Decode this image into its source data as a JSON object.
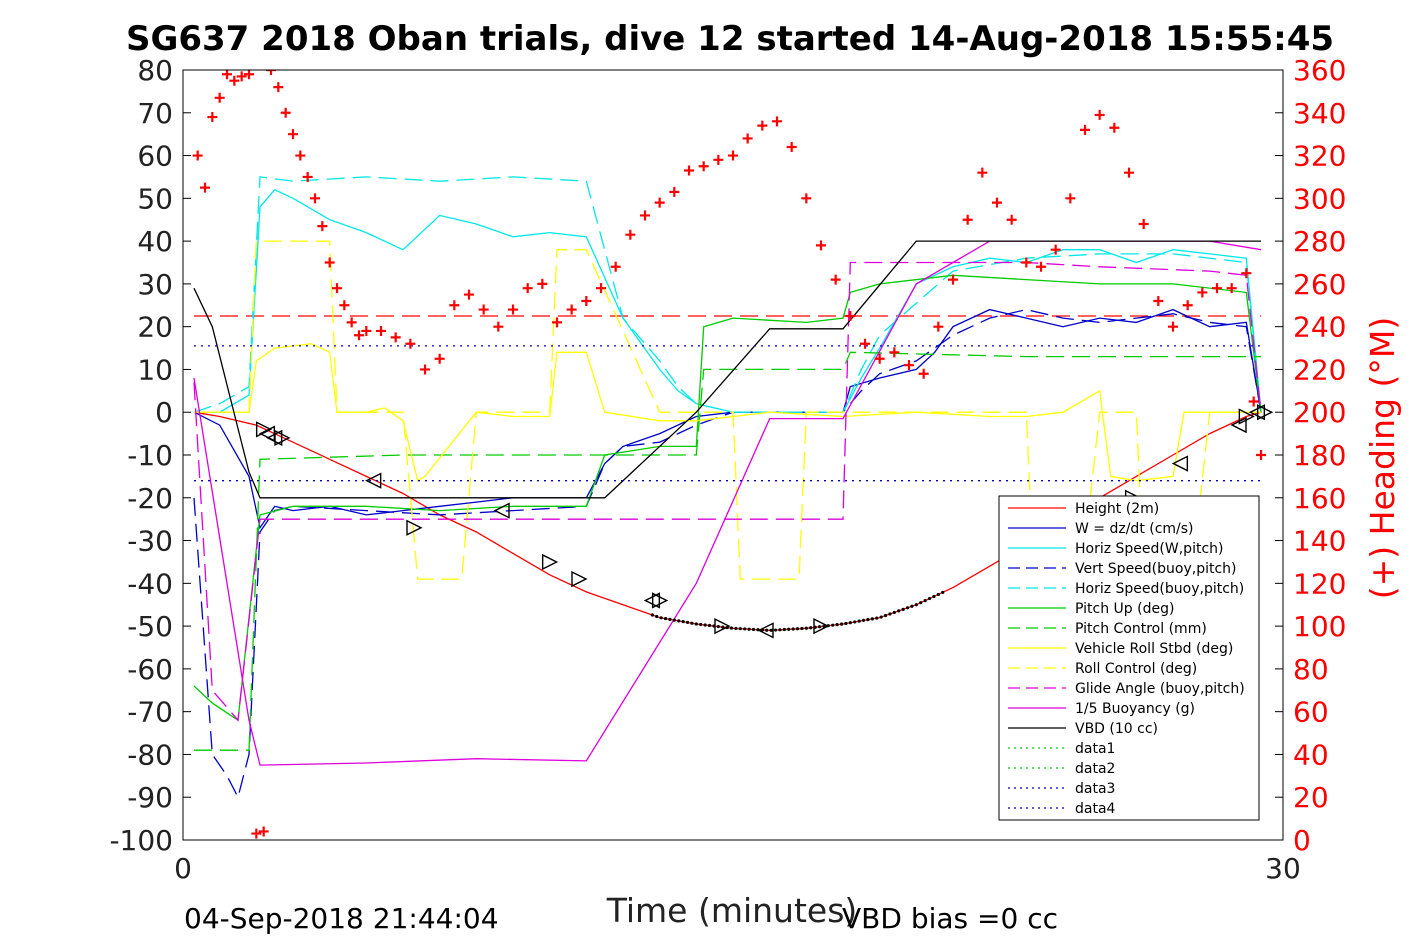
{
  "chart_data": {
    "type": "line",
    "title": "SG637 2018 Oban trials, dive 12 started 14-Aug-2018 15:55:45",
    "xlabel": "Time (minutes)",
    "ylabel_right": "(+) Heading (°M)",
    "xlim": [
      0,
      30
    ],
    "ylim_left": [
      -100,
      80
    ],
    "ylim_right": [
      0,
      360
    ],
    "x_ticks": [
      "0",
      "30"
    ],
    "y_ticks_left": [
      "80",
      "70",
      "60",
      "50",
      "40",
      "30",
      "20",
      "10",
      "0",
      "-10",
      "-20",
      "-30",
      "-40",
      "-50",
      "-60",
      "-70",
      "-80",
      "-90",
      "-100"
    ],
    "y_ticks_right": [
      "360",
      "340",
      "320",
      "300",
      "280",
      "260",
      "240",
      "220",
      "200",
      "180",
      "160",
      "140",
      "120",
      "100",
      "80",
      "60",
      "40",
      "20",
      "0"
    ],
    "grid": false,
    "legend_position": "lower-right",
    "footer_left": "04-Sep-2018 21:44:04",
    "footer_right": "VBD bias =0 cc",
    "colors": {
      "heading": "#ff0000",
      "height": "#ff0000",
      "w": "#0000c8",
      "horiz_speed": "#00e8e8",
      "pitch": "#00cc00",
      "roll": "#ffff00",
      "glide": "#dd00dd",
      "buoyancy": "#dd00dd",
      "vbd": "#000000",
      "data_green": "#00cc00",
      "data_blue": "#0000c8"
    },
    "series": [
      {
        "name": "Height (2m)",
        "axis": "left",
        "style": "solid",
        "color": "#ff0000",
        "x": [
          0.3,
          1,
          2,
          3,
          4,
          5,
          6,
          7,
          8,
          9,
          10,
          11,
          12,
          13,
          14,
          15,
          16,
          17,
          18,
          19,
          20,
          21,
          22,
          23,
          24,
          25,
          26,
          27,
          28,
          29,
          29.4
        ],
        "values": [
          0,
          -1,
          -3,
          -7,
          -11,
          -15,
          -19,
          -24,
          -28,
          -33,
          -38,
          -42,
          -45,
          -48,
          -49.5,
          -50.5,
          -51,
          -50.5,
          -49.5,
          -48,
          -45,
          -41,
          -36,
          -31,
          -26,
          -20,
          -15,
          -10,
          -5,
          -1,
          0
        ]
      },
      {
        "name": "W = dz/dt (cm/s)",
        "axis": "left",
        "style": "solid",
        "color": "#0000c8",
        "x": [
          0.3,
          1,
          1.8,
          2.1,
          2.5,
          3,
          4,
          5,
          6,
          7,
          8,
          9,
          10,
          11,
          11.5,
          12,
          13,
          14,
          15,
          16,
          17,
          18,
          18.2,
          19,
          20,
          20.5,
          21,
          22,
          23,
          24,
          25,
          26,
          27,
          28,
          29,
          29.4
        ],
        "values": [
          0,
          -3,
          -15,
          -27,
          -22,
          -23,
          -22,
          -24,
          -23,
          -22,
          -21,
          -20,
          -20,
          -20,
          -12,
          -8,
          -5,
          -1,
          0,
          0,
          0,
          0,
          6,
          8,
          10,
          14,
          20,
          24,
          22,
          20,
          22,
          21,
          24,
          20,
          21,
          0
        ]
      },
      {
        "name": "Horiz Speed(W,pitch)",
        "axis": "left",
        "style": "solid",
        "color": "#00e8e8",
        "x": [
          0.3,
          1,
          1.8,
          2.1,
          2.5,
          3,
          4,
          5,
          6,
          7,
          8,
          9,
          10,
          11,
          12,
          13,
          13.5,
          14,
          15,
          16,
          17,
          18,
          18.5,
          19,
          20,
          21,
          22,
          23,
          24,
          25,
          26,
          27,
          28,
          29,
          29.4
        ],
        "values": [
          0,
          0,
          4,
          48,
          52,
          50,
          45,
          42,
          38,
          46,
          44,
          41,
          42,
          41,
          22,
          10,
          5,
          2,
          0,
          0,
          0,
          0,
          8,
          15,
          30,
          34,
          36,
          35,
          38,
          38,
          35,
          38,
          37,
          36,
          0
        ]
      },
      {
        "name": "Vert Speed(buoy,pitch)",
        "axis": "left",
        "style": "dashed",
        "color": "#0000c8",
        "x": [
          0.3,
          0.8,
          1.2,
          1.5,
          1.8,
          2.1,
          2.5,
          3,
          5,
          7,
          9,
          11,
          11.5,
          12,
          13,
          14,
          15,
          17,
          18,
          18.5,
          19,
          20,
          21,
          22,
          23,
          24,
          25,
          26,
          27,
          28,
          29,
          29.4
        ],
        "values": [
          -20,
          -80,
          -85,
          -90,
          -80,
          -28,
          -23,
          -22,
          -23,
          -24,
          -23,
          -22,
          -12,
          -8,
          -7,
          -3,
          0,
          0,
          0,
          5,
          9,
          12,
          18,
          22,
          24,
          22,
          21,
          22,
          23,
          21,
          20,
          0
        ]
      },
      {
        "name": "Horiz Speed(buoy,pitch)",
        "axis": "left",
        "style": "dashed",
        "color": "#00e8e8",
        "x": [
          0.3,
          1,
          1.8,
          2.1,
          3,
          5,
          7,
          9,
          11,
          12,
          13,
          13.5,
          14,
          15,
          17,
          18,
          18.5,
          19,
          21,
          23,
          25,
          27,
          29,
          29.4
        ],
        "values": [
          0,
          2,
          6,
          55,
          54,
          55,
          54,
          55,
          54,
          22,
          12,
          6,
          2,
          0,
          0,
          0,
          10,
          18,
          33,
          36,
          37,
          37,
          35,
          0
        ]
      },
      {
        "name": "Pitch Up (deg)",
        "axis": "left",
        "style": "solid",
        "color": "#00cc00",
        "x": [
          0.3,
          0.8,
          1.5,
          2.1,
          3,
          5,
          7,
          9,
          11,
          11.5,
          13,
          14,
          14.2,
          15,
          17,
          18,
          18.2,
          19,
          21,
          23,
          25,
          27,
          29,
          29.4
        ],
        "values": [
          -64,
          -68,
          -72,
          -24,
          -22,
          -22,
          -23,
          -22,
          -22,
          -10,
          -8,
          -8,
          20,
          22,
          21,
          22,
          28,
          30,
          32,
          31,
          30,
          30,
          28,
          0
        ]
      },
      {
        "name": "Pitch Control (mm)",
        "axis": "left",
        "style": "dashed",
        "color": "#00cc00",
        "x": [
          0.3,
          1.8,
          2.1,
          6,
          11,
          11.5,
          14,
          14.2,
          18,
          18.2,
          23,
          29.4
        ],
        "values": [
          -79,
          -79,
          -11,
          -10,
          -10,
          -10,
          -10,
          10,
          10,
          14,
          13,
          13
        ]
      },
      {
        "name": "Vehicle Roll Stbd (deg)",
        "axis": "left",
        "style": "solid",
        "color": "#ffff00",
        "x": [
          0.3,
          1.8,
          2,
          2.5,
          3.5,
          4,
          4.2,
          5,
          5.5,
          6,
          6.4,
          6.6,
          8,
          9,
          10,
          10.2,
          11,
          11.5,
          13,
          14,
          16,
          18,
          20,
          22,
          23,
          24,
          25,
          25.3,
          26,
          27,
          27.3,
          28,
          29,
          29.4
        ],
        "values": [
          0,
          0,
          12,
          15,
          16,
          14,
          0,
          0,
          1,
          -2,
          -16,
          -15,
          0,
          -1,
          -1,
          14,
          14,
          0,
          -2,
          -2,
          0,
          -1,
          0,
          -1,
          -1,
          0,
          5,
          -15,
          -16,
          -15,
          0,
          0,
          0,
          0
        ]
      },
      {
        "name": "Roll Control (deg)",
        "axis": "left",
        "style": "dashed",
        "color": "#ffff00",
        "x": [
          0.3,
          1.8,
          2,
          4,
          4.2,
          6,
          6.4,
          7.6,
          8,
          9,
          10,
          10.2,
          11,
          13,
          14,
          15,
          15.2,
          16.8,
          17,
          22,
          23,
          23.2,
          24.5,
          25,
          26,
          26.2,
          27.5,
          28,
          29,
          29.4
        ],
        "values": [
          0,
          0,
          40,
          40,
          0,
          0,
          -39,
          -39,
          0,
          0,
          0,
          38,
          38,
          0,
          0,
          0,
          -39,
          -39,
          0,
          0,
          0,
          -39,
          -39,
          0,
          0,
          -39,
          -39,
          0,
          0,
          0
        ]
      },
      {
        "name": "Glide Angle (buoy,pitch)",
        "axis": "left",
        "style": "dashed",
        "color": "#dd00dd",
        "x": [
          0.3,
          0.8,
          1.5,
          2.1,
          14,
          18,
          18.2,
          23,
          25,
          28,
          29,
          29.4
        ],
        "values": [
          7,
          -65,
          -72,
          -25,
          -25,
          -25,
          35,
          35,
          34,
          33,
          32,
          0
        ]
      },
      {
        "name": "1/5 Buoyancy (g)",
        "axis": "left",
        "style": "solid",
        "color": "#dd00dd",
        "x": [
          0.3,
          1.8,
          2.1,
          5,
          8,
          11,
          14,
          16,
          18,
          20,
          22,
          24,
          26,
          28,
          29.4
        ],
        "values": [
          8,
          -72,
          -82.5,
          -82,
          -81,
          -81.5,
          -40,
          -1.5,
          -1.5,
          30,
          40,
          40,
          40,
          40,
          38
        ]
      },
      {
        "name": "VBD (10 cc)",
        "axis": "left",
        "style": "solid",
        "color": "#000000",
        "x": [
          0.3,
          0.8,
          1.8,
          2.1,
          6,
          11,
          11.5,
          14,
          16,
          18,
          20,
          29.4
        ],
        "values": [
          29,
          20,
          -14,
          -20,
          -20,
          -20,
          -20,
          0,
          19.5,
          19.5,
          40,
          40
        ]
      },
      {
        "name": "data1",
        "axis": "left",
        "style": "dotted",
        "color": "#00cc00",
        "x": [],
        "values": []
      },
      {
        "name": "data2",
        "axis": "left",
        "style": "dotted",
        "color": "#00cc00",
        "x": [],
        "values": []
      },
      {
        "name": "data3",
        "axis": "left",
        "style": "dotted",
        "color": "#0000c8",
        "x": [
          0.3,
          29.4
        ],
        "values": [
          -16,
          -16
        ]
      },
      {
        "name": "data4",
        "axis": "left",
        "style": "dotted",
        "color": "#0000c8",
        "x": [
          0.3,
          29.4
        ],
        "values": [
          15.5,
          15.5
        ]
      }
    ],
    "reference_lines": [
      {
        "axis": "left",
        "style": "dashed",
        "color": "#ff0000",
        "value": 22.5,
        "x": [
          0.3,
          29.4
        ]
      }
    ],
    "heading_points": {
      "axis": "right",
      "marker": "+",
      "color": "#ff0000",
      "x": [
        0.4,
        0.6,
        0.8,
        1.0,
        1.2,
        1.4,
        1.6,
        1.8,
        2.0,
        2.2,
        2.4,
        2.6,
        2.8,
        3.0,
        3.2,
        3.4,
        3.6,
        3.8,
        4.0,
        4.2,
        4.4,
        4.6,
        4.8,
        5.0,
        5.4,
        5.8,
        6.2,
        6.6,
        7.0,
        7.4,
        7.8,
        8.2,
        8.6,
        9.0,
        9.4,
        9.8,
        10.2,
        10.6,
        11.0,
        11.4,
        11.8,
        12.2,
        12.6,
        13.0,
        13.4,
        13.8,
        14.2,
        14.6,
        15.0,
        15.4,
        15.8,
        16.2,
        16.6,
        17.0,
        17.4,
        17.8,
        18.2,
        18.6,
        19.0,
        19.4,
        19.8,
        20.2,
        20.6,
        21.0,
        21.4,
        21.8,
        22.2,
        22.6,
        23.0,
        23.4,
        23.8,
        24.2,
        24.6,
        25.0,
        25.4,
        25.8,
        26.2,
        26.6,
        27.0,
        27.4,
        27.8,
        28.2,
        28.6,
        29.0,
        29.2,
        29.4
      ],
      "values": [
        320,
        305,
        338,
        347,
        358,
        355,
        357,
        358,
        3,
        4,
        360,
        352,
        340,
        330,
        320,
        310,
        300,
        287,
        270,
        258,
        250,
        242,
        236,
        238,
        238,
        235,
        232,
        220,
        225,
        250,
        255,
        248,
        240,
        248,
        258,
        260,
        242,
        248,
        252,
        258,
        268,
        283,
        292,
        298,
        303,
        313,
        315,
        318,
        320,
        328,
        334,
        336,
        324,
        300,
        278,
        262,
        245,
        232,
        225,
        228,
        222,
        218,
        240,
        262,
        290,
        312,
        298,
        290,
        270,
        268,
        276,
        300,
        332,
        339,
        333,
        312,
        288,
        252,
        240,
        250,
        256,
        258,
        258,
        265,
        205,
        180
      ]
    },
    "markers": {
      "glyph": "triangle",
      "left_pointing_x": [
        2.3,
        2.5,
        5.2,
        8.7,
        12.8,
        15.9,
        27.2,
        28.8,
        29.3
      ],
      "left_pointing_y": [
        -5,
        -6,
        -16,
        -23,
        -44,
        -51,
        -12,
        -3,
        0
      ],
      "right_pointing_x": [
        2.2,
        2.7,
        6.3,
        10.0,
        10.8,
        13.0,
        14.7,
        17.4,
        23.2,
        24.5,
        25.9,
        29.0,
        29.5
      ],
      "right_pointing_y": [
        -4,
        -6,
        -27,
        -35,
        -39,
        -44,
        -50,
        -50,
        -35,
        -29,
        -20,
        -1,
        0
      ]
    },
    "black_dot_segment": {
      "color": "#000000",
      "x_start": 12.8,
      "x_end": 20.8
    }
  }
}
